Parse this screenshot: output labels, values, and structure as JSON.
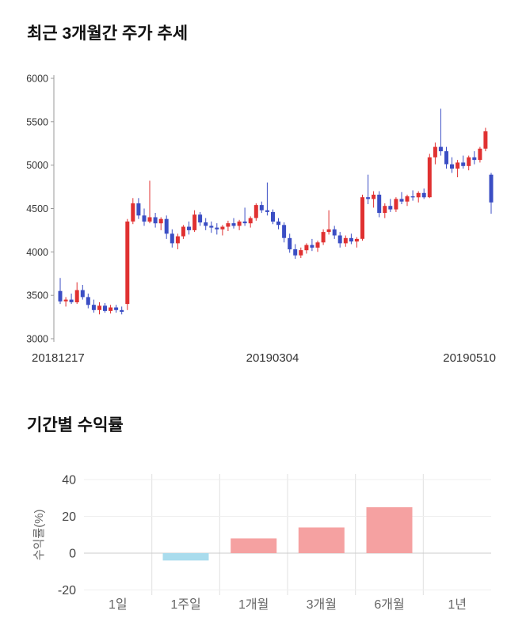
{
  "sections": {
    "price_trend": {
      "title": "최근 3개월간 주가 추세"
    },
    "period_returns": {
      "title": "기간별 수익률"
    }
  },
  "chart_data": [
    {
      "type": "candlestick",
      "title": "최근 3개월간 주가 추세",
      "ylim": [
        3000,
        6000
      ],
      "y_ticks": [
        6000,
        5500,
        5000,
        4500,
        4000,
        3500,
        3000
      ],
      "x_tick_labels": [
        "20181217",
        "20190304",
        "20190510"
      ],
      "up_color": "#e03131",
      "down_color": "#3b4ec4",
      "axis_color": "#999999",
      "tick_label_color": "#333333",
      "grid": "off",
      "candles": [
        [
          3550,
          3700,
          3400,
          3430
        ],
        [
          3430,
          3480,
          3370,
          3450
        ],
        [
          3450,
          3520,
          3400,
          3420
        ],
        [
          3420,
          3650,
          3400,
          3560
        ],
        [
          3560,
          3620,
          3450,
          3480
        ],
        [
          3480,
          3520,
          3350,
          3390
        ],
        [
          3390,
          3450,
          3300,
          3330
        ],
        [
          3330,
          3420,
          3280,
          3380
        ],
        [
          3380,
          3410,
          3300,
          3320
        ],
        [
          3320,
          3390,
          3290,
          3360
        ],
        [
          3360,
          3390,
          3300,
          3330
        ],
        [
          3330,
          3370,
          3280,
          3310
        ],
        [
          3400,
          4380,
          3330,
          4350
        ],
        [
          4350,
          4620,
          4320,
          4560
        ],
        [
          4560,
          4620,
          4380,
          4420
        ],
        [
          4420,
          4500,
          4300,
          4350
        ],
        [
          4350,
          4820,
          4330,
          4400
        ],
        [
          4400,
          4450,
          4280,
          4330
        ],
        [
          4330,
          4400,
          4250,
          4380
        ],
        [
          4380,
          4420,
          4150,
          4210
        ],
        [
          4210,
          4260,
          4050,
          4100
        ],
        [
          4100,
          4210,
          4030,
          4180
        ],
        [
          4180,
          4310,
          4150,
          4290
        ],
        [
          4290,
          4350,
          4200,
          4250
        ],
        [
          4250,
          4480,
          4230,
          4430
        ],
        [
          4430,
          4460,
          4300,
          4340
        ],
        [
          4340,
          4390,
          4250,
          4300
        ],
        [
          4300,
          4350,
          4220,
          4280
        ],
        [
          4280,
          4330,
          4200,
          4260
        ],
        [
          4260,
          4310,
          4190,
          4290
        ],
        [
          4290,
          4360,
          4240,
          4330
        ],
        [
          4330,
          4390,
          4270,
          4300
        ],
        [
          4300,
          4370,
          4250,
          4350
        ],
        [
          4350,
          4510,
          4300,
          4330
        ],
        [
          4330,
          4410,
          4280,
          4390
        ],
        [
          4390,
          4560,
          4360,
          4540
        ],
        [
          4540,
          4580,
          4450,
          4480
        ],
        [
          4480,
          4800,
          4420,
          4460
        ],
        [
          4460,
          4490,
          4320,
          4350
        ],
        [
          4350,
          4390,
          4260,
          4310
        ],
        [
          4310,
          4340,
          4110,
          4160
        ],
        [
          4160,
          4210,
          3990,
          4030
        ],
        [
          4030,
          4090,
          3920,
          3960
        ],
        [
          3960,
          4050,
          3930,
          4020
        ],
        [
          4020,
          4100,
          3980,
          4080
        ],
        [
          4080,
          4150,
          4010,
          4050
        ],
        [
          4050,
          4130,
          4000,
          4110
        ],
        [
          4110,
          4260,
          4080,
          4230
        ],
        [
          4230,
          4480,
          4200,
          4260
        ],
        [
          4260,
          4300,
          4150,
          4190
        ],
        [
          4190,
          4230,
          4050,
          4100
        ],
        [
          4100,
          4190,
          4060,
          4160
        ],
        [
          4160,
          4210,
          4090,
          4120
        ],
        [
          4120,
          4170,
          4050,
          4150
        ],
        [
          4150,
          4660,
          4130,
          4630
        ],
        [
          4630,
          4890,
          4550,
          4610
        ],
        [
          4610,
          4700,
          4510,
          4660
        ],
        [
          4660,
          4700,
          4400,
          4450
        ],
        [
          4450,
          4560,
          4390,
          4530
        ],
        [
          4530,
          4610,
          4460,
          4490
        ],
        [
          4490,
          4630,
          4460,
          4610
        ],
        [
          4610,
          4690,
          4550,
          4580
        ],
        [
          4580,
          4660,
          4530,
          4640
        ],
        [
          4640,
          4710,
          4590,
          4630
        ],
        [
          4630,
          4700,
          4570,
          4680
        ],
        [
          4680,
          4730,
          4610,
          4630
        ],
        [
          4630,
          5130,
          4620,
          5090
        ],
        [
          5090,
          5260,
          5010,
          5210
        ],
        [
          5210,
          5650,
          5110,
          5160
        ],
        [
          5160,
          5210,
          4960,
          5010
        ],
        [
          5010,
          5090,
          4910,
          4960
        ],
        [
          4960,
          5060,
          4860,
          5030
        ],
        [
          5030,
          5110,
          4960,
          4990
        ],
        [
          4990,
          5110,
          4940,
          5090
        ],
        [
          5090,
          5160,
          5010,
          5060
        ],
        [
          5060,
          5210,
          5030,
          5190
        ],
        [
          5190,
          5430,
          5160,
          5390
        ],
        [
          4890,
          4910,
          4440,
          4570
        ]
      ]
    },
    {
      "type": "bar",
      "title": "기간별 수익률",
      "categories": [
        "1일",
        "1주일",
        "1개월",
        "3개월",
        "6개월",
        "1년"
      ],
      "values": [
        0,
        -4,
        8,
        14,
        25,
        0
      ],
      "ylabel": "수익률(%)",
      "y_ticks": [
        40,
        20,
        0,
        -20
      ],
      "ylim": [
        -20,
        40
      ],
      "positive_color": "#f5a1a1",
      "negative_color": "#a9dced",
      "grid": "vertical-between-categories",
      "baseline_color": "#cccccc",
      "gridline_color": "#e0e0e0",
      "tick_label_color": "#444444",
      "category_label_color": "#666666",
      "legend": "none"
    }
  ]
}
